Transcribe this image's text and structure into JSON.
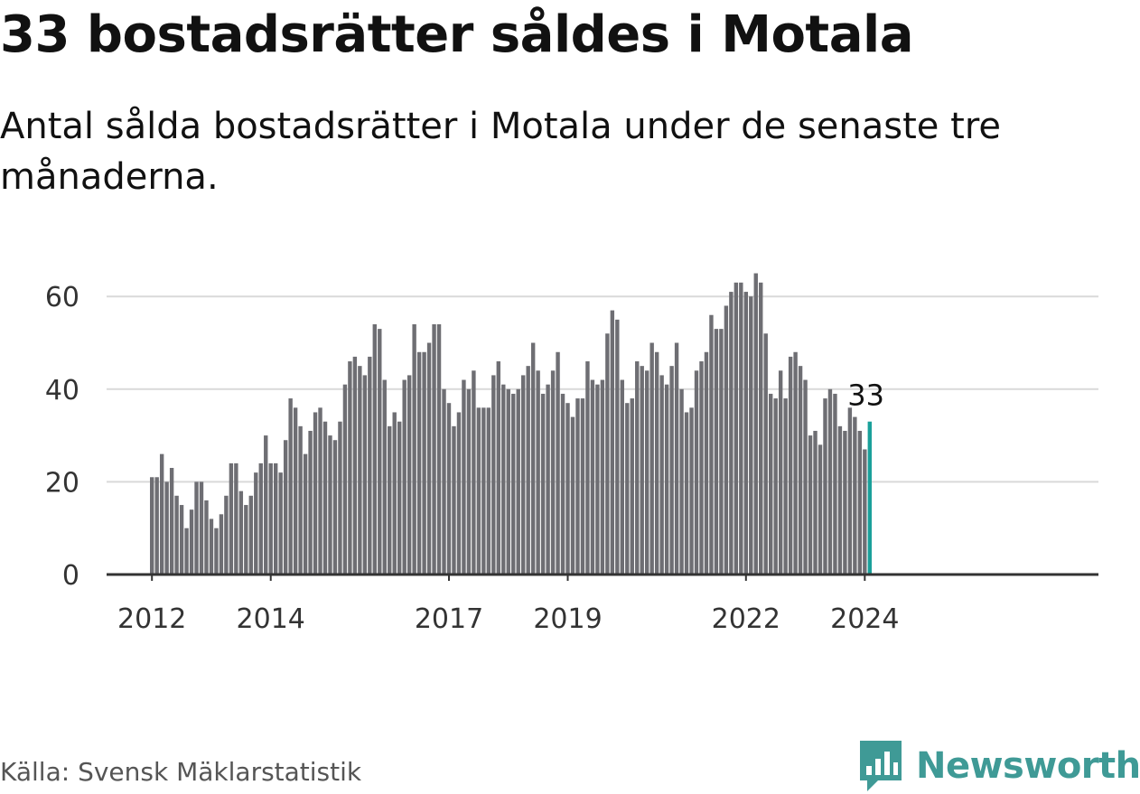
{
  "header": {
    "title": "33 bostadsrätter såldes i Motala",
    "subtitle": "Antal sålda bostadsrätter i Motala under de senaste tre månaderna."
  },
  "footer": {
    "source": "Källa: Svensk Mäklarstatistik",
    "brand": "Newsworthy"
  },
  "colors": {
    "bar": "#6e6e73",
    "highlight": "#1aa09a",
    "grid": "#d9d9d9",
    "axis": "#333333",
    "brand": "#3f9a96"
  },
  "icons": {
    "brand_logo": "newsworthy-logo-icon"
  },
  "chart_data": {
    "type": "bar",
    "title": "33 bostadsrätter såldes i Motala",
    "xlabel": "",
    "ylabel": "",
    "ylim": [
      0,
      68
    ],
    "yticks": [
      "0",
      "20",
      "40",
      "60"
    ],
    "xticks": [
      {
        "label": "2012",
        "index": 0
      },
      {
        "label": "2014",
        "index": 24
      },
      {
        "label": "2017",
        "index": 60
      },
      {
        "label": "2019",
        "index": 84
      },
      {
        "label": "2022",
        "index": 120
      },
      {
        "label": "2024",
        "index": 144
      }
    ],
    "grid": true,
    "highlight_index": 145,
    "highlight_label": "33",
    "values": [
      21,
      21,
      26,
      20,
      23,
      17,
      15,
      10,
      14,
      20,
      20,
      16,
      12,
      10,
      13,
      17,
      24,
      24,
      18,
      15,
      17,
      22,
      24,
      30,
      24,
      24,
      22,
      29,
      38,
      36,
      32,
      26,
      31,
      35,
      36,
      33,
      30,
      29,
      33,
      41,
      46,
      47,
      45,
      43,
      47,
      54,
      53,
      42,
      32,
      35,
      33,
      42,
      43,
      54,
      48,
      48,
      50,
      54,
      54,
      40,
      37,
      32,
      35,
      42,
      40,
      44,
      36,
      36,
      36,
      43,
      46,
      41,
      40,
      39,
      40,
      43,
      45,
      50,
      44,
      39,
      41,
      44,
      48,
      39,
      37,
      34,
      38,
      38,
      46,
      42,
      41,
      42,
      52,
      57,
      55,
      42,
      37,
      38,
      46,
      45,
      44,
      50,
      48,
      43,
      41,
      45,
      50,
      40,
      35,
      36,
      44,
      46,
      48,
      56,
      53,
      53,
      58,
      61,
      63,
      63,
      61,
      60,
      65,
      63,
      52,
      39,
      38,
      44,
      38,
      47,
      48,
      45,
      42,
      30,
      31,
      28,
      38,
      40,
      39,
      32,
      31,
      36,
      34,
      31,
      27,
      33
    ]
  }
}
